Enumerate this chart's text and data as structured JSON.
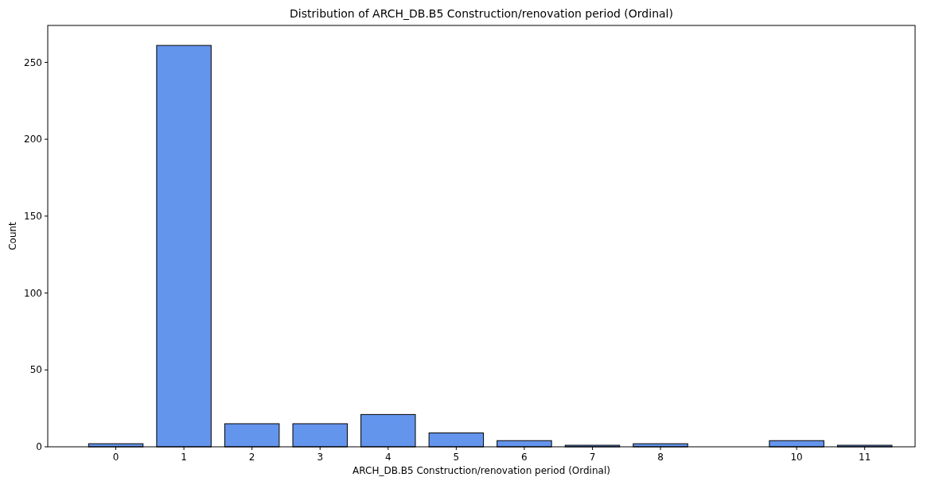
{
  "chart_data": {
    "type": "bar",
    "title": "Distribution of ARCH_DB.B5 Construction/renovation period (Ordinal)",
    "xlabel": "ARCH_DB.B5 Construction/renovation period (Ordinal)",
    "ylabel": "Count",
    "x": [
      0,
      1,
      2,
      3,
      4,
      5,
      6,
      7,
      8,
      10,
      11
    ],
    "values": [
      2,
      261,
      15,
      15,
      21,
      9,
      4,
      1,
      2,
      4,
      1
    ],
    "color": "#6495ed",
    "xlim": [
      -1,
      11.74
    ],
    "xticks": [
      0,
      1,
      2,
      3,
      4,
      5,
      6,
      7,
      8,
      10,
      11
    ],
    "ylim": [
      0,
      274
    ],
    "yticks": [
      0,
      50,
      100,
      150,
      200,
      250
    ],
    "grid": false
  }
}
